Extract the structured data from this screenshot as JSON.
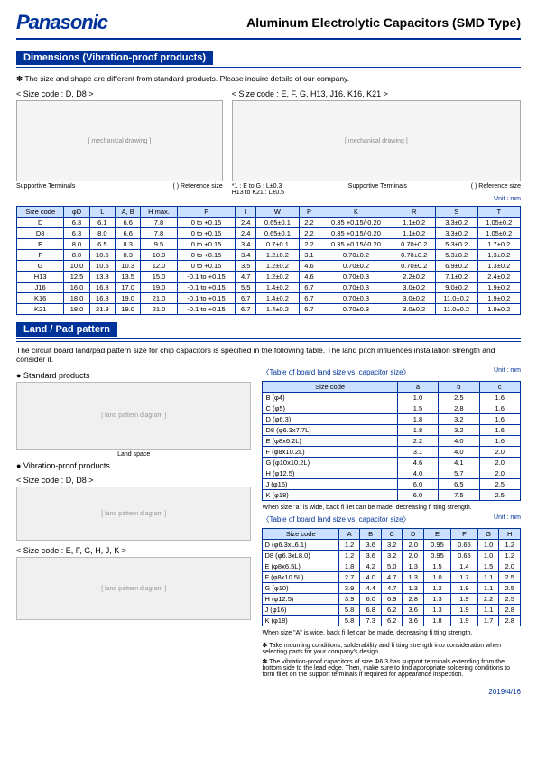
{
  "header": {
    "logo": "Panasonic",
    "title": "Aluminum Electrolytic Capacitors (SMD Type)"
  },
  "section1": {
    "bar": "Dimensions (Vibration-proof products)",
    "note": "✽ The size and shape are different from standard products. Please inquire details of our company.",
    "left_label": "< Size code : D, D8 >",
    "right_label": "< Size code : E, F, G, H13, J16, K16, K21 >",
    "diag_placeholder": "[ mechanical drawing ]",
    "sup_term": "Supportive Terminals",
    "ref_size": "( ) Reference size",
    "note1": "*1 : E to G : L±0.3",
    "note2": "     H13 to K21 : L±0.5",
    "unit": "Unit : mm",
    "headers": [
      "Size code",
      "φD",
      "L",
      "A, B",
      "H max.",
      "F",
      "I",
      "W",
      "P",
      "K",
      "R",
      "S",
      "T"
    ],
    "rows": [
      [
        "D",
        "6.3",
        "6.1",
        "6.6",
        "7.8",
        "0 to +0.15",
        "2.4",
        "0.65±0.1",
        "2.2",
        "0.35 +0.15/-0.20",
        "1.1±0.2",
        "3.3±0.2",
        "1.05±0.2"
      ],
      [
        "D8",
        "6.3",
        "8.0",
        "6.6",
        "7.8",
        "0 to +0.15",
        "2.4",
        "0.65±0.1",
        "2.2",
        "0.35 +0.15/-0.20",
        "1.1±0.2",
        "3.3±0.2",
        "1.05±0.2"
      ],
      [
        "E",
        "8.0",
        "6.5",
        "8.3",
        "9.5",
        "0 to +0.15",
        "3.4",
        "0.7±0.1",
        "2.2",
        "0.35 +0.15/-0.20",
        "0.70±0.2",
        "5.3±0.2",
        "1.7±0.2"
      ],
      [
        "F",
        "8.0",
        "10.5",
        "8.3",
        "10.0",
        "0 to +0.15",
        "3.4",
        "1.2±0.2",
        "3.1",
        "0.70±0.2",
        "0.70±0.2",
        "5.3±0.2",
        "1.3±0.2"
      ],
      [
        "G",
        "10.0",
        "10.5",
        "10.3",
        "12.0",
        "0 to +0.15",
        "3.5",
        "1.2±0.2",
        "4.6",
        "0.70±0.2",
        "0.70±0.2",
        "6.9±0.2",
        "1.3±0.2"
      ],
      [
        "H13",
        "12.5",
        "13.8",
        "13.5",
        "15.0",
        "-0.1 to +0.15",
        "4.7",
        "1.2±0.2",
        "4.6",
        "0.70±0.3",
        "2.2±0.2",
        "7.1±0.2",
        "2.4±0.2"
      ],
      [
        "J16",
        "16.0",
        "16.8",
        "17.0",
        "19.0",
        "-0.1 to +0.15",
        "5.5",
        "1.4±0.2",
        "6.7",
        "0.70±0.3",
        "3.0±0.2",
        "9.0±0.2",
        "1.9±0.2"
      ],
      [
        "K16",
        "18.0",
        "16.8",
        "19.0",
        "21.0",
        "-0.1 to +0.15",
        "6.7",
        "1.4±0.2",
        "6.7",
        "0.70±0.3",
        "3.0±0.2",
        "11.0±0.2",
        "1.9±0.2"
      ],
      [
        "K21",
        "18.0",
        "21.8",
        "19.0",
        "21.0",
        "-0.1 to +0.15",
        "6.7",
        "1.4±0.2",
        "6.7",
        "0.70±0.3",
        "3.0±0.2",
        "11.0±0.2",
        "1.9±0.2"
      ]
    ]
  },
  "section2": {
    "bar": "Land / Pad pattern",
    "intro": "The circuit board land/pad pattern size for chip capacitors is specified in the following table. The land pitch influences installation strength and consider it.",
    "std_label": "● Standard products",
    "vib_label": "● Vibration-proof products",
    "sc1": "< Size code : D, D8 >",
    "sc2": "< Size code : E, F, G, H, J, K >",
    "land_space": "Land space",
    "diag_placeholder": "[ land pattern diagram ]",
    "t1_caption": "〈Table of board land size vs. capacitor size〉",
    "t1_unit": "Unit : mm",
    "t1_headers": [
      "Size code",
      "a",
      "b",
      "c"
    ],
    "t1_rows": [
      [
        "B (φ4)",
        "1.0",
        "2.5",
        "1.6"
      ],
      [
        "C (φ5)",
        "1.5",
        "2.8",
        "1.6"
      ],
      [
        "D (φ6.3)",
        "1.8",
        "3.2",
        "1.6"
      ],
      [
        "D8 (φ6.3x7.7L)",
        "1.8",
        "3.2",
        "1.6"
      ],
      [
        "E (φ8x6.2L)",
        "2.2",
        "4.0",
        "1.6"
      ],
      [
        "F (φ8x10.2L)",
        "3.1",
        "4.0",
        "2.0"
      ],
      [
        "G (φ10x10.2L)",
        "4.6",
        "4.1",
        "2.0"
      ],
      [
        "H (φ12.5)",
        "4.0",
        "5.7",
        "2.0"
      ],
      [
        "J (φ16)",
        "6.0",
        "6.5",
        "2.5"
      ],
      [
        "K (φ18)",
        "6.0",
        "7.5",
        "2.5"
      ]
    ],
    "t1_foot": "When size \"a\" is wide, back fi llet can be made, decreasing fi tting strength.",
    "t2_caption": "〈Table of board land size vs. capacitor size〉",
    "t2_unit": "Unit : mm",
    "t2_headers": [
      "Size code",
      "A",
      "B",
      "C",
      "D",
      "E",
      "F",
      "G",
      "H"
    ],
    "t2_rows": [
      [
        "D (φ6.3xL6.1)",
        "1.2",
        "3.6",
        "3.2",
        "2.0",
        "0.95",
        "0.65",
        "1.0",
        "1.2"
      ],
      [
        "D8 (φ6.3xL8.0)",
        "1.2",
        "3.6",
        "3.2",
        "2.0",
        "0.95",
        "0.65",
        "1.0",
        "1.2"
      ],
      [
        "E (φ8x6.5L)",
        "1.8",
        "4.2",
        "5.0",
        "1.3",
        "1.5",
        "1.4",
        "1.5",
        "2.0"
      ],
      [
        "F (φ8x10.5L)",
        "2.7",
        "4.0",
        "4.7",
        "1.3",
        "1.0",
        "1.7",
        "1.1",
        "2.5"
      ],
      [
        "G (φ10)",
        "3.9",
        "4.4",
        "4.7",
        "1.3",
        "1.2",
        "1.9",
        "1.1",
        "2.5"
      ],
      [
        "H (φ12.5)",
        "3.9",
        "6.0",
        "6.9",
        "2.8",
        "1.3",
        "1.9",
        "2.2",
        "2.5"
      ],
      [
        "J (φ16)",
        "5.8",
        "6.8",
        "6.2",
        "3.6",
        "1.3",
        "1.9",
        "1.1",
        "2.8"
      ],
      [
        "K (φ18)",
        "5.8",
        "7.3",
        "6.2",
        "3.6",
        "1.8",
        "1.9",
        "1.7",
        "2.8"
      ]
    ],
    "t2_foot": "When size \"A\" is wide, back fi llet can be made, decreasing fi tting strength.",
    "foot_a": "✽ Take mounting conditions, solderability and fi tting strength into consideration when selecting parts for your company's design.",
    "foot_b": "✽ The vibration-proof capacitors of size Φ6.3 has support terminals extending from the bottom side to the lead edge. Then, make sure to find appropriate soldering conditions to form fillet on the support terminals if required for appearance inspection."
  },
  "footer": {
    "left": "",
    "right": "2019/4/16"
  }
}
